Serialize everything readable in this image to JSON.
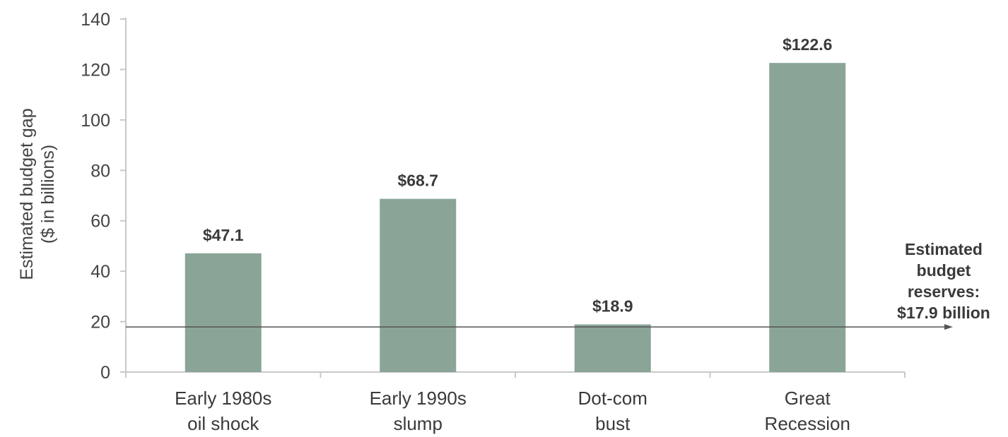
{
  "chart_data": {
    "type": "bar",
    "categories": [
      [
        "Early 1980s",
        "oil shock"
      ],
      [
        "Early 1990s",
        "slump"
      ],
      [
        "Dot-com",
        "bust"
      ],
      [
        "Great",
        "Recession"
      ]
    ],
    "values": [
      47.1,
      68.7,
      18.9,
      122.6
    ],
    "data_labels": [
      "$47.1",
      "$68.7",
      "$18.9",
      "$122.6"
    ],
    "ylabel": [
      "Estimated budget gap",
      "($ in billions)"
    ],
    "ylim": [
      0,
      140
    ],
    "yticks": [
      0,
      20,
      40,
      60,
      80,
      100,
      120,
      140
    ],
    "grid": false,
    "bar_color": "#8aa597",
    "reference_line": {
      "value": 17.9,
      "label": [
        "Estimated",
        "budget",
        "reserves:",
        "$17.9 billion"
      ]
    }
  }
}
